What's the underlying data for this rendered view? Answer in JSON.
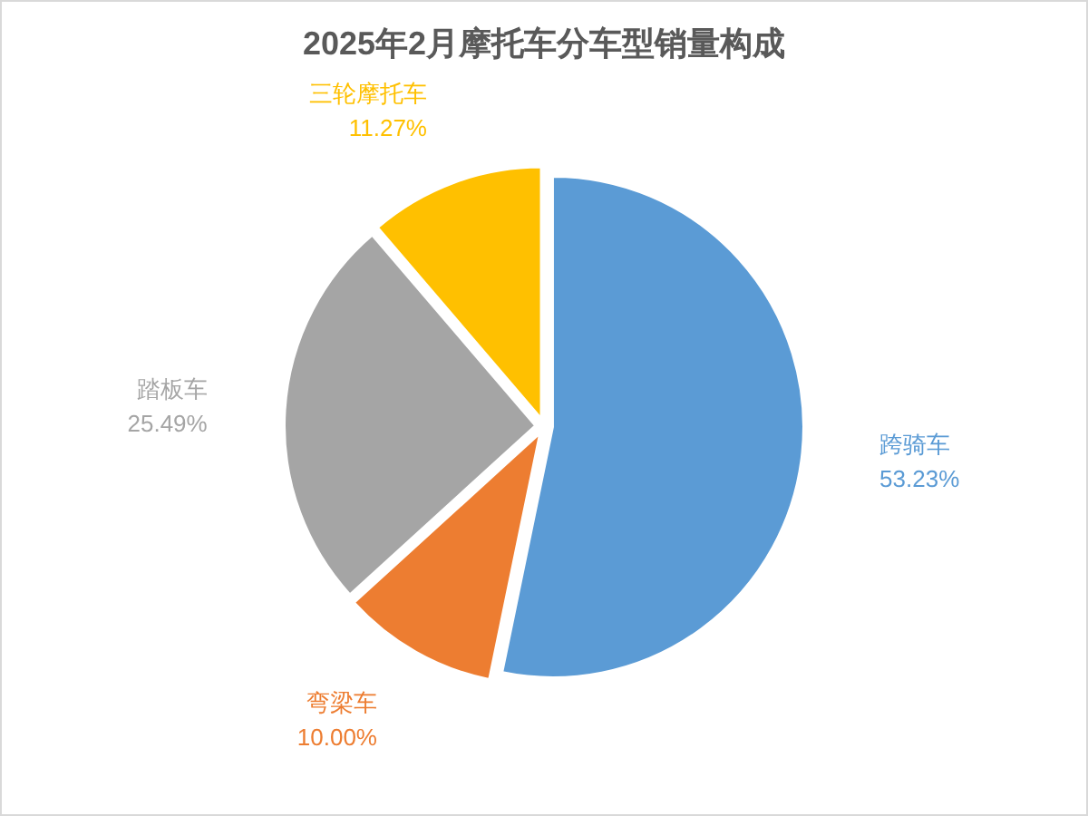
{
  "chart_data": {
    "type": "pie",
    "title": "2025年2月摩托车分车型销量构成",
    "categories": [
      "跨骑车",
      "弯梁车",
      "踏板车",
      "三轮摩托车"
    ],
    "values": [
      53.23,
      10.0,
      25.49,
      11.27
    ],
    "colors": [
      "#5b9bd5",
      "#ed7d31",
      "#a5a5a5",
      "#ffc000"
    ],
    "value_labels": [
      "53.23%",
      "10.00%",
      "25.49%",
      "11.27%"
    ]
  }
}
